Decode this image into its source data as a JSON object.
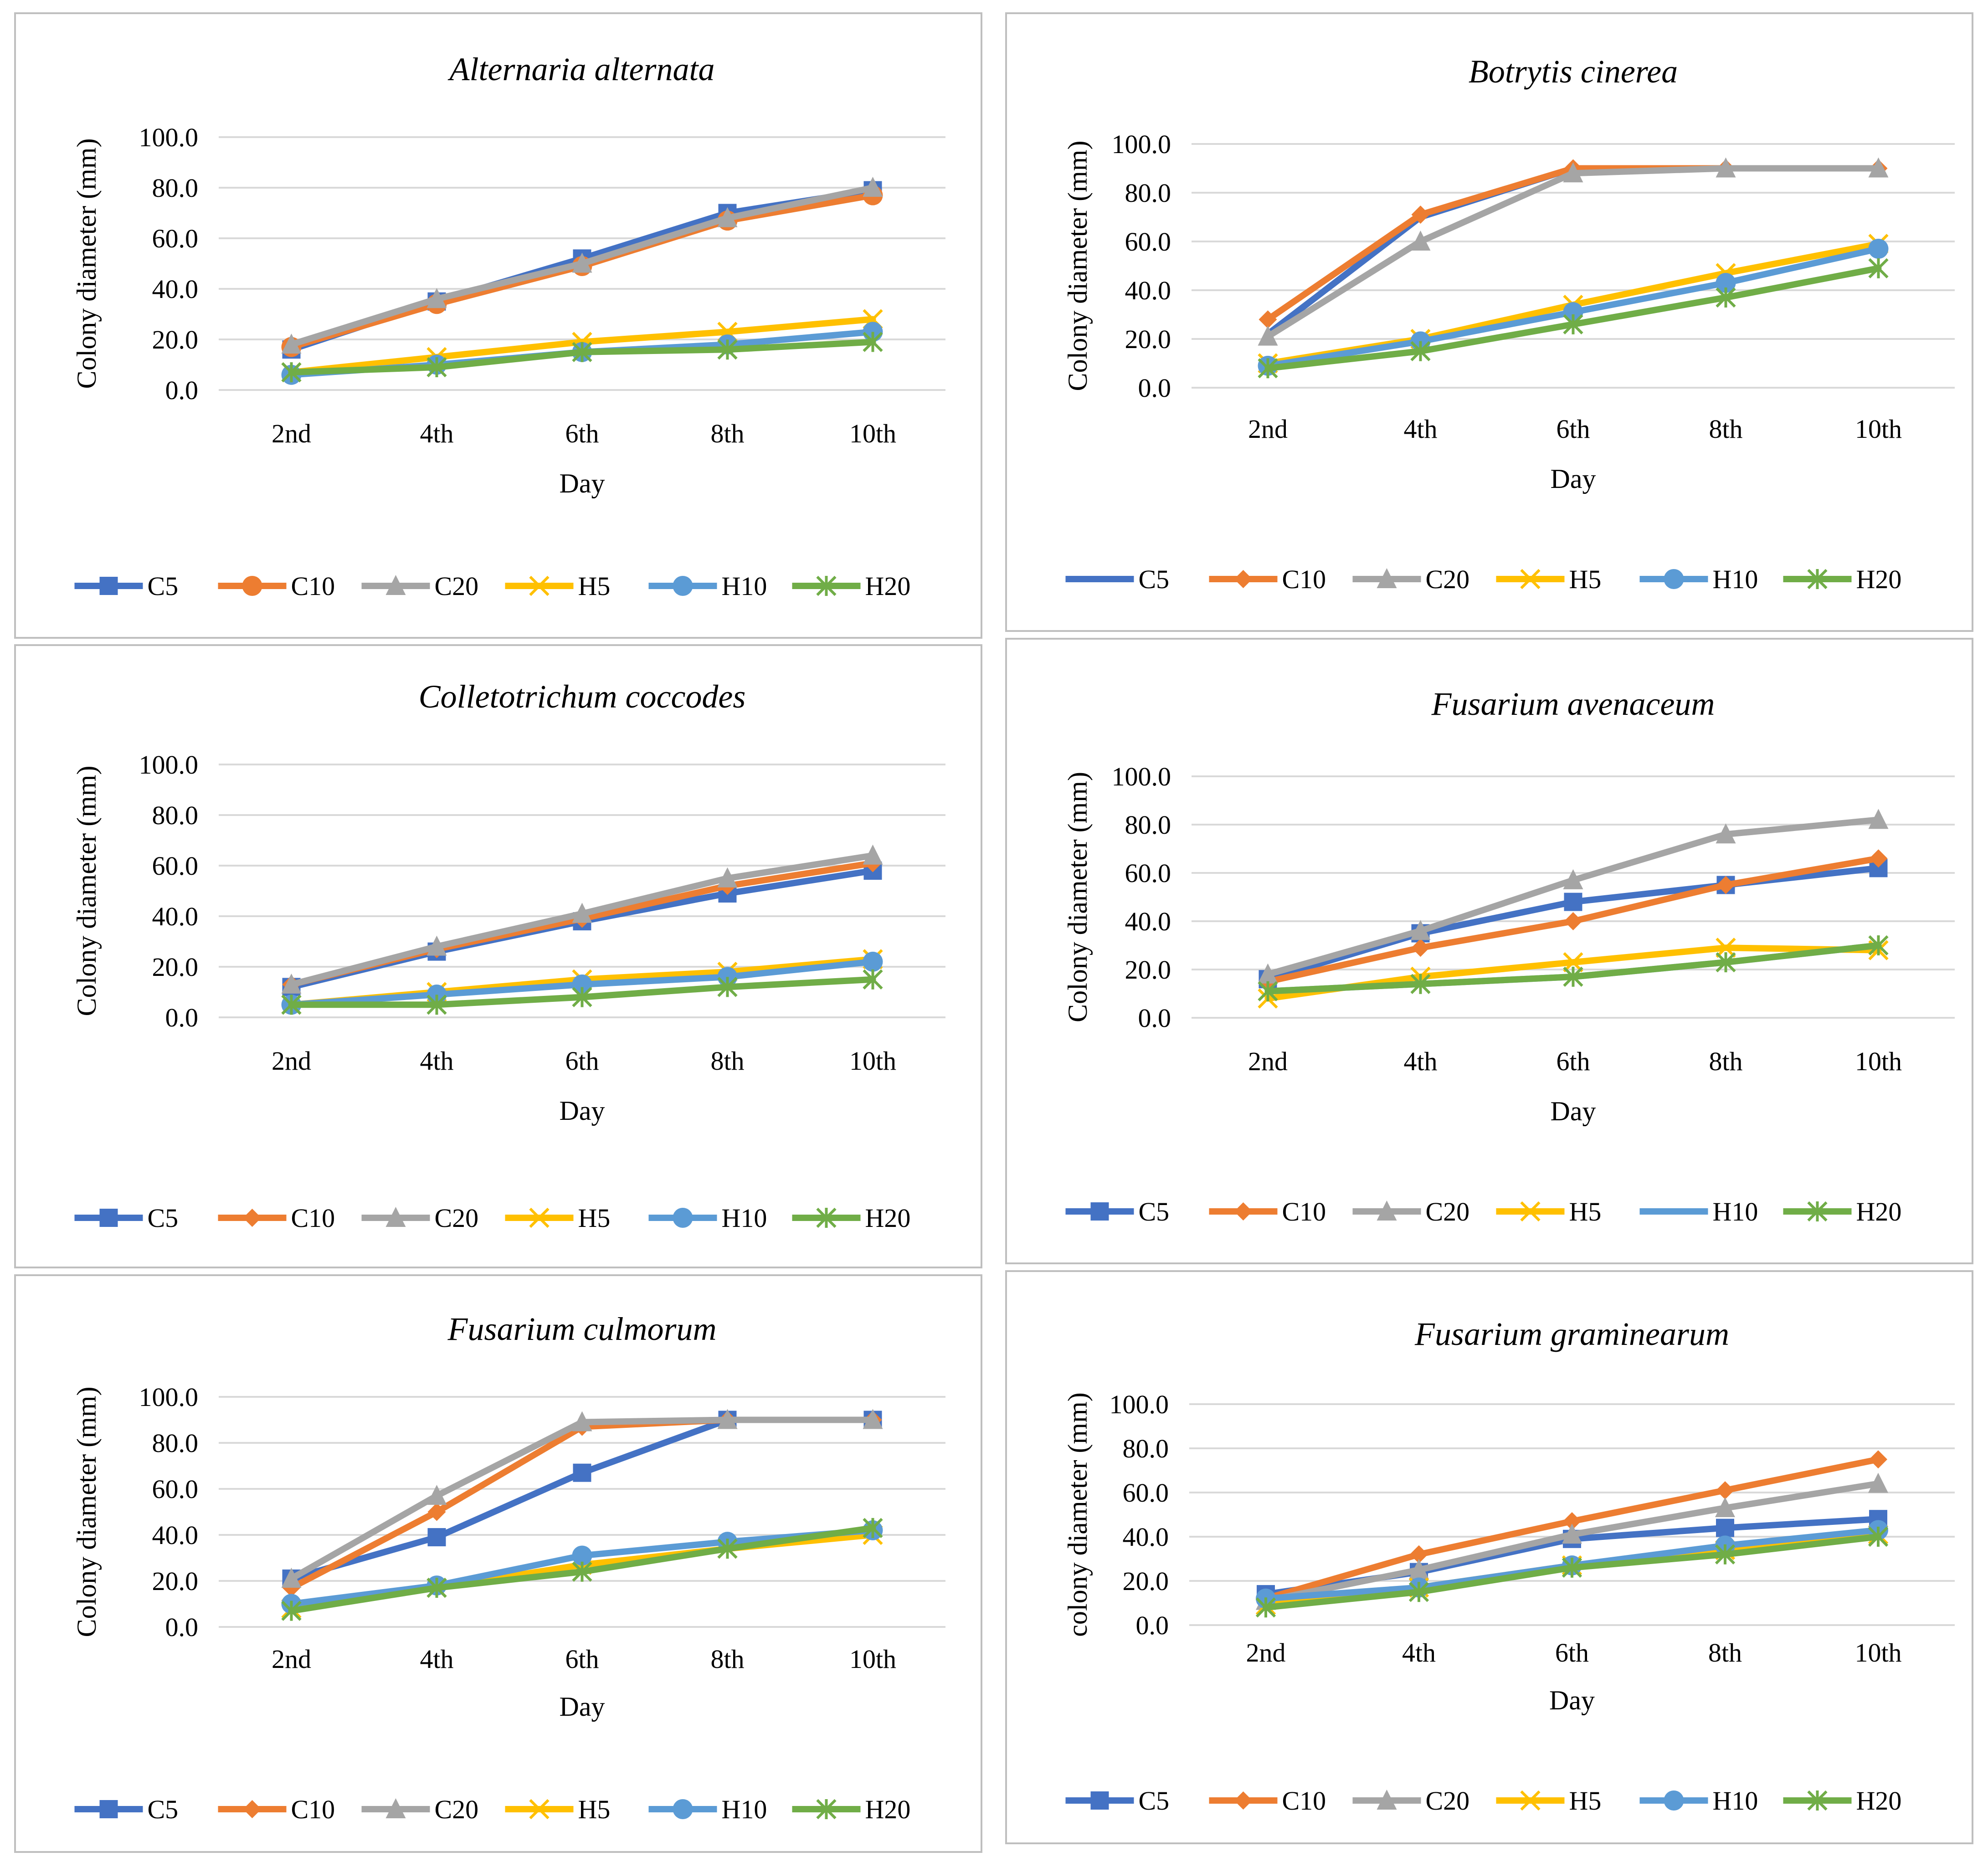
{
  "colors": {
    "C5": "#4472c4",
    "C10": "#ed7d31",
    "C20": "#a5a5a5",
    "H5": "#ffc000",
    "H10": "#5b9bd5",
    "H20": "#70ad47",
    "grid": "#d9d9d9",
    "border": "#bfbfbf"
  },
  "chart_data": [
    {
      "type": "line",
      "title": "Alternaria alternata",
      "xlabel": "Day",
      "ylabel": "Colony diameter (mm)",
      "ylim": [
        0,
        100
      ],
      "yticks": [
        "0.0",
        "20.0",
        "40.0",
        "60.0",
        "80.0",
        "100.0"
      ],
      "categories": [
        "2nd",
        "4th",
        "6th",
        "8th",
        "10th"
      ],
      "legend_position": "bottom",
      "series": [
        {
          "name": "C5",
          "marker": "square",
          "values": [
            16,
            35,
            52,
            70,
            79
          ]
        },
        {
          "name": "C10",
          "marker": "circle",
          "values": [
            17,
            34,
            49,
            67,
            77
          ]
        },
        {
          "name": "C20",
          "marker": "triangle",
          "values": [
            18,
            36,
            50,
            68,
            80
          ]
        },
        {
          "name": "H5",
          "marker": "x",
          "values": [
            7,
            13,
            19,
            23,
            28
          ]
        },
        {
          "name": "H10",
          "marker": "circle",
          "values": [
            6,
            10,
            15,
            18,
            23
          ]
        },
        {
          "name": "H20",
          "marker": "star",
          "values": [
            7,
            9,
            15,
            16,
            19
          ]
        }
      ]
    },
    {
      "type": "line",
      "title": "Botrytis cinerea",
      "xlabel": "Day",
      "ylabel": "Colony diameter (mm)",
      "ylim": [
        0,
        100
      ],
      "yticks": [
        "0.0",
        "20.0",
        "40.0",
        "60.0",
        "80.0",
        "100.0"
      ],
      "categories": [
        "2nd",
        "4th",
        "6th",
        "8th",
        "10th"
      ],
      "legend_position": "bottom",
      "series": [
        {
          "name": "C5",
          "marker": "none",
          "values": [
            22,
            70,
            90,
            90,
            90
          ]
        },
        {
          "name": "C10",
          "marker": "diamond",
          "values": [
            28,
            71,
            90,
            90,
            90
          ]
        },
        {
          "name": "C20",
          "marker": "triangle",
          "values": [
            21,
            60,
            88,
            90,
            90
          ]
        },
        {
          "name": "H5",
          "marker": "x",
          "values": [
            10,
            20,
            34,
            47,
            59
          ]
        },
        {
          "name": "H10",
          "marker": "circle",
          "values": [
            9,
            19,
            31,
            43,
            57
          ]
        },
        {
          "name": "H20",
          "marker": "star",
          "values": [
            8,
            15,
            26,
            37,
            49
          ]
        }
      ]
    },
    {
      "type": "line",
      "title": "Colletotrichum coccodes",
      "xlabel": "Day",
      "ylabel": "Colony diameter (mm)",
      "ylim": [
        0,
        100
      ],
      "yticks": [
        "0.0",
        "20.0",
        "40.0",
        "60.0",
        "80.0",
        "100.0"
      ],
      "categories": [
        "2nd",
        "4th",
        "6th",
        "8th",
        "10th"
      ],
      "legend_position": "bottom",
      "series": [
        {
          "name": "C5",
          "marker": "square",
          "values": [
            12,
            26,
            38,
            49,
            58
          ]
        },
        {
          "name": "C10",
          "marker": "diamond",
          "values": [
            13,
            27,
            39,
            52,
            61
          ]
        },
        {
          "name": "C20",
          "marker": "triangle",
          "values": [
            13,
            28,
            41,
            55,
            64
          ]
        },
        {
          "name": "H5",
          "marker": "x",
          "values": [
            5,
            10,
            15,
            18,
            23
          ]
        },
        {
          "name": "H10",
          "marker": "circle",
          "values": [
            5,
            9,
            13,
            16,
            22
          ]
        },
        {
          "name": "H20",
          "marker": "star",
          "values": [
            5,
            5,
            8,
            12,
            15
          ]
        }
      ]
    },
    {
      "type": "line",
      "title": "Fusarium avenaceum",
      "xlabel": "Day",
      "ylabel": "Colony diameter (mm)",
      "ylim": [
        0,
        100
      ],
      "yticks": [
        "0.0",
        "20.0",
        "40.0",
        "60.0",
        "80.0",
        "100.0"
      ],
      "categories": [
        "2nd",
        "4th",
        "6th",
        "8th",
        "10th"
      ],
      "legend_position": "bottom",
      "series": [
        {
          "name": "C5",
          "marker": "square",
          "values": [
            16,
            35,
            48,
            55,
            62
          ]
        },
        {
          "name": "C10",
          "marker": "diamond",
          "values": [
            15,
            29,
            40,
            55,
            66
          ]
        },
        {
          "name": "C20",
          "marker": "triangle",
          "values": [
            18,
            36,
            57,
            76,
            82
          ]
        },
        {
          "name": "H5",
          "marker": "x",
          "values": [
            8,
            17,
            23,
            29,
            28
          ]
        },
        {
          "name": "H10",
          "marker": "none",
          "values": [
            11,
            14,
            17,
            23,
            30
          ]
        },
        {
          "name": "H20",
          "marker": "star",
          "values": [
            11,
            14,
            17,
            23,
            30
          ]
        }
      ]
    },
    {
      "type": "line",
      "title": "Fusarium culmorum",
      "xlabel": "Day",
      "ylabel": "Colony diameter (mm)",
      "ylim": [
        0,
        100
      ],
      "yticks": [
        "0.0",
        "20.0",
        "40.0",
        "60.0",
        "80.0",
        "100.0"
      ],
      "categories": [
        "2nd",
        "4th",
        "6th",
        "8th",
        "10th"
      ],
      "legend_position": "bottom",
      "series": [
        {
          "name": "C5",
          "marker": "square",
          "values": [
            21,
            39,
            67,
            90,
            90
          ]
        },
        {
          "name": "C10",
          "marker": "diamond",
          "values": [
            17,
            50,
            87,
            90,
            90
          ]
        },
        {
          "name": "C20",
          "marker": "triangle",
          "values": [
            21,
            57,
            89,
            90,
            90
          ]
        },
        {
          "name": "H5",
          "marker": "x",
          "values": [
            8,
            17,
            27,
            34,
            40
          ]
        },
        {
          "name": "H10",
          "marker": "circle",
          "values": [
            10,
            18,
            31,
            37,
            42
          ]
        },
        {
          "name": "H20",
          "marker": "star",
          "values": [
            7,
            17,
            24,
            34,
            43
          ]
        }
      ]
    },
    {
      "type": "line",
      "title": "Fusarium graminearum",
      "xlabel": "Day",
      "ylabel": "colony diameter (mm)",
      "ylim": [
        0,
        100
      ],
      "yticks": [
        "0.0",
        "20.0",
        "40.0",
        "60.0",
        "80.0",
        "100.0"
      ],
      "categories": [
        "2nd",
        "4th",
        "6th",
        "8th",
        "10th"
      ],
      "legend_position": "bottom",
      "series": [
        {
          "name": "C5",
          "marker": "square",
          "values": [
            14,
            24,
            39,
            44,
            48
          ]
        },
        {
          "name": "C10",
          "marker": "diamond",
          "values": [
            12,
            32,
            47,
            61,
            75
          ]
        },
        {
          "name": "C20",
          "marker": "triangle",
          "values": [
            11,
            25,
            41,
            53,
            64
          ]
        },
        {
          "name": "H5",
          "marker": "x",
          "values": [
            9,
            17,
            27,
            34,
            41
          ]
        },
        {
          "name": "H10",
          "marker": "circle",
          "values": [
            12,
            17,
            27,
            36,
            43
          ]
        },
        {
          "name": "H20",
          "marker": "star",
          "values": [
            8,
            15,
            26,
            32,
            40
          ]
        }
      ]
    }
  ]
}
